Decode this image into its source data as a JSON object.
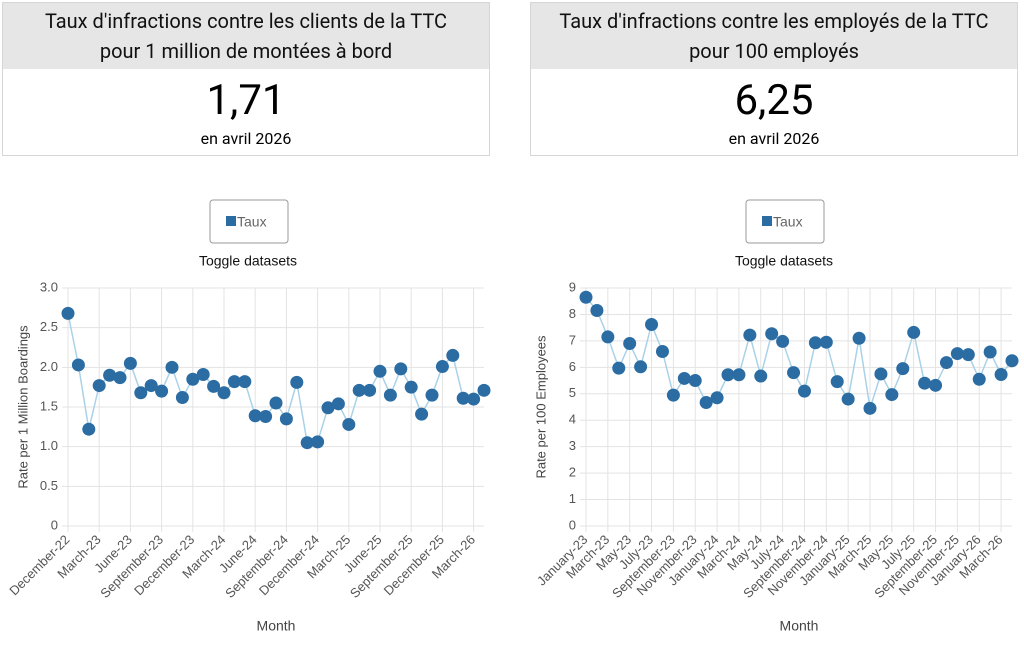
{
  "cards": [
    {
      "title_lines": [
        "Taux d'infractions contre les clients de la TTC",
        "pour 1 million de montées à bord"
      ],
      "value": "1,71",
      "caption": "en avril 2026"
    },
    {
      "title_lines": [
        "Taux d'infractions contre les employés de la TTC",
        "pour 100 employés"
      ],
      "value": "6,25",
      "caption": "en avril 2026"
    }
  ],
  "toggle_text": [
    "Toggle datasets",
    "Toggle datasets"
  ],
  "chart_data": [
    {
      "type": "line",
      "x_label": "Month",
      "y_label": "Rate per 1 Million Boardings",
      "categories": [
        "December-22",
        null,
        null,
        "March-23",
        null,
        null,
        "June-23",
        null,
        null,
        "September-23",
        null,
        null,
        "December-23",
        null,
        null,
        "March-24",
        null,
        null,
        "June-24",
        null,
        null,
        "September-24",
        null,
        null,
        "December-24",
        null,
        null,
        "March-25",
        null,
        null,
        "June-25",
        null,
        null,
        "September-25",
        null,
        null,
        "December-25",
        null,
        null,
        "March-26",
        null
      ],
      "series": [
        {
          "name": "Taux",
          "color": "#2b6ca3",
          "line_color": "#a9d2e8",
          "values": [
            2.68,
            2.03,
            1.22,
            1.77,
            1.9,
            1.87,
            2.05,
            1.68,
            1.77,
            1.7,
            2.0,
            1.62,
            1.85,
            1.91,
            1.76,
            1.68,
            1.82,
            1.82,
            1.39,
            1.38,
            1.55,
            1.35,
            1.81,
            1.05,
            1.06,
            1.49,
            1.54,
            1.28,
            1.71,
            1.71,
            1.95,
            1.65,
            1.98,
            1.75,
            1.41,
            1.65,
            2.01,
            2.15,
            1.61,
            1.6,
            1.71
          ]
        }
      ],
      "ylim": [
        0,
        3
      ],
      "yticks": [
        0,
        0.5,
        {
          "value": 1,
          "label": "1.0"
        },
        1.5,
        {
          "value": 2,
          "label": "2.0"
        },
        2.5,
        {
          "value": 3,
          "label": "3.0"
        }
      ],
      "grid": true
    },
    {
      "type": "line",
      "x_label": "Month",
      "y_label": "Rate per 100 Employees",
      "categories": [
        "January-23",
        null,
        "March-23",
        null,
        "May-23",
        null,
        "July-23",
        null,
        "September-23",
        null,
        "November-23",
        null,
        "January-24",
        null,
        "March-24",
        null,
        "May-24",
        null,
        "July-24",
        null,
        "September-24",
        null,
        "November-24",
        null,
        "January-25",
        null,
        "March-25",
        null,
        "May-25",
        null,
        "July-25",
        null,
        "September-25",
        null,
        "November-25",
        null,
        "January-26",
        null,
        "March-26",
        null
      ],
      "series": [
        {
          "name": "Taux",
          "color": "#2b6ca3",
          "line_color": "#a9d2e8",
          "values": [
            8.65,
            8.15,
            7.15,
            5.97,
            6.9,
            6.02,
            7.62,
            6.6,
            4.95,
            5.58,
            5.5,
            4.67,
            4.85,
            5.72,
            5.72,
            7.22,
            5.67,
            7.27,
            6.98,
            5.8,
            5.1,
            6.93,
            6.95,
            5.46,
            4.8,
            7.1,
            4.45,
            5.75,
            4.97,
            5.95,
            7.32,
            5.4,
            5.32,
            6.18,
            6.52,
            6.48,
            5.55,
            6.58,
            5.73,
            6.25
          ]
        }
      ],
      "ylim": [
        0,
        9
      ],
      "yticks": [
        0,
        1,
        2,
        3,
        4,
        5,
        6,
        7,
        8,
        9
      ],
      "grid": true
    }
  ]
}
